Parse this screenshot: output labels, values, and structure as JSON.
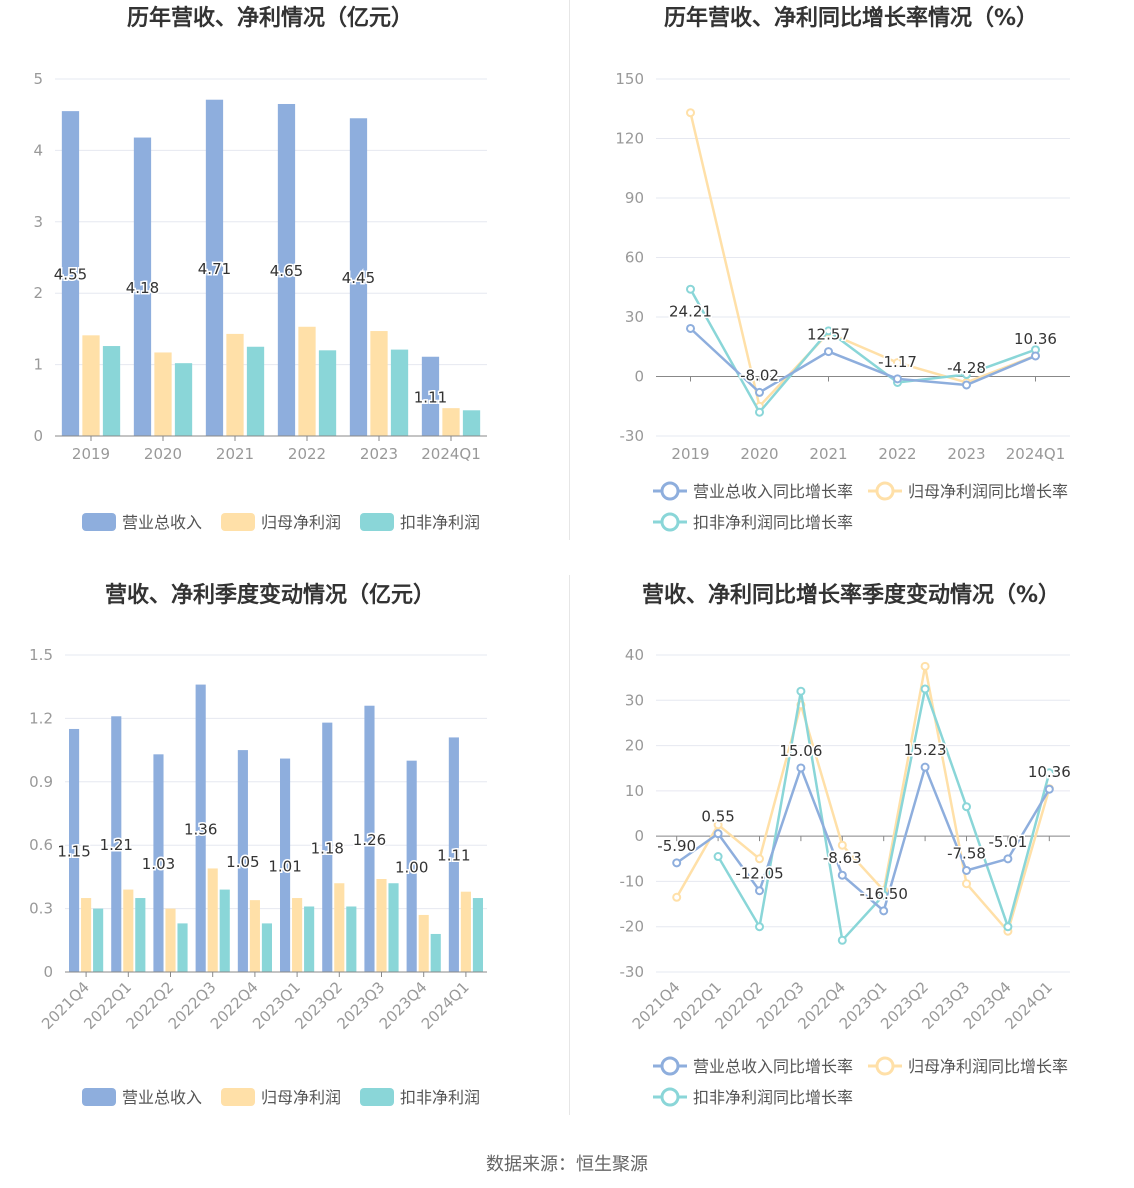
{
  "footer": "数据来源：恒生聚源",
  "colors": {
    "revenue": "#8eaedd",
    "net_profit": "#ffe0a8",
    "deducted_profit": "#8ad6d8",
    "axis": "#999999",
    "grid": "#e6e8f0",
    "title": "#333333"
  },
  "chart_data": [
    {
      "id": "annual_values",
      "type": "bar",
      "title": "历年营收、净利情况（亿元）",
      "categories": [
        "2019",
        "2020",
        "2021",
        "2022",
        "2023",
        "2024Q1"
      ],
      "ylim": [
        0,
        5
      ],
      "yticks": [
        0,
        1,
        2,
        3,
        4,
        5
      ],
      "series": [
        {
          "name": "营业总收入",
          "values": [
            4.55,
            4.18,
            4.71,
            4.65,
            4.45,
            1.11
          ],
          "labels": [
            "4.55",
            "4.18",
            "4.71",
            "4.65",
            "4.45",
            "1.11"
          ]
        },
        {
          "name": "归母净利润",
          "values": [
            1.41,
            1.17,
            1.43,
            1.53,
            1.47,
            0.39
          ]
        },
        {
          "name": "扣非净利润",
          "values": [
            1.26,
            1.02,
            1.25,
            1.2,
            1.21,
            0.36
          ]
        }
      ],
      "legend": "bottom",
      "grid": true
    },
    {
      "id": "annual_growth",
      "type": "line",
      "title": "历年营收、净利同比增长率情况（%）",
      "categories": [
        "2019",
        "2020",
        "2021",
        "2022",
        "2023",
        "2024Q1"
      ],
      "ylim": [
        -30,
        150
      ],
      "yticks": [
        -30,
        0,
        30,
        60,
        90,
        120,
        150
      ],
      "series": [
        {
          "name": "营业总收入同比增长率",
          "values": [
            24.21,
            -8.02,
            12.57,
            -1.17,
            -4.28,
            10.36
          ],
          "labels": [
            "24.21",
            "-8.02",
            "12.57",
            "-1.17",
            "-4.28",
            "10.36"
          ]
        },
        {
          "name": "归母净利润同比增长率",
          "values": [
            133,
            -15,
            22,
            7,
            -3,
            10.5
          ]
        },
        {
          "name": "扣非净利润同比增长率",
          "values": [
            44,
            -18,
            23,
            -3,
            1,
            13.5
          ]
        }
      ],
      "legend": "bottom",
      "grid": true
    },
    {
      "id": "quarterly_values",
      "type": "bar",
      "title": "营收、净利季度变动情况（亿元）",
      "categories": [
        "2021Q4",
        "2022Q1",
        "2022Q2",
        "2022Q3",
        "2022Q4",
        "2023Q1",
        "2023Q2",
        "2023Q3",
        "2023Q4",
        "2024Q1"
      ],
      "ylim": [
        0,
        1.5
      ],
      "yticks": [
        "0",
        "0.3",
        "0.6",
        "0.9",
        "1.2",
        "1.5"
      ],
      "series": [
        {
          "name": "营业总收入",
          "values": [
            1.15,
            1.21,
            1.03,
            1.36,
            1.05,
            1.01,
            1.18,
            1.26,
            1.0,
            1.11
          ],
          "labels": [
            "1.15",
            "1.21",
            "1.03",
            "1.36",
            "1.05",
            "1.01",
            "1.18",
            "1.26",
            "1.00",
            "1.11"
          ]
        },
        {
          "name": "归母净利润",
          "values": [
            0.35,
            0.39,
            0.3,
            0.49,
            0.34,
            0.35,
            0.42,
            0.44,
            0.27,
            0.38
          ]
        },
        {
          "name": "扣非净利润",
          "values": [
            0.3,
            0.35,
            0.23,
            0.39,
            0.23,
            0.31,
            0.31,
            0.42,
            0.18,
            0.35
          ]
        }
      ],
      "legend": "bottom",
      "grid": true
    },
    {
      "id": "quarterly_growth",
      "type": "line",
      "title": "营收、净利同比增长率季度变动情况（%）",
      "categories": [
        "2021Q4",
        "2022Q1",
        "2022Q2",
        "2022Q3",
        "2022Q4",
        "2023Q1",
        "2023Q2",
        "2023Q3",
        "2023Q4",
        "2024Q1"
      ],
      "ylim": [
        -30,
        40
      ],
      "yticks": [
        -30,
        -20,
        -10,
        0,
        10,
        20,
        30,
        40
      ],
      "series": [
        {
          "name": "营业总收入同比增长率",
          "values": [
            -5.9,
            0.55,
            -12.05,
            15.06,
            -8.63,
            -16.5,
            15.23,
            -7.58,
            -5.01,
            10.36
          ],
          "labels": [
            "-5.90",
            "0.55",
            "-12.05",
            "15.06",
            "-8.63",
            "-16.50",
            "15.23",
            "-7.58",
            "-5.01",
            "10.36"
          ]
        },
        {
          "name": "归母净利润同比增长率",
          "values": [
            -13.5,
            2.5,
            -5,
            29,
            -2,
            -12,
            37.5,
            -10.5,
            -21,
            10.5
          ]
        },
        {
          "name": "扣非净利润同比增长率",
          "values": [
            null,
            -4.5,
            -20,
            32,
            -23,
            -13,
            32.5,
            6.5,
            -20,
            14
          ]
        }
      ],
      "legend": "bottom",
      "grid": true
    }
  ]
}
